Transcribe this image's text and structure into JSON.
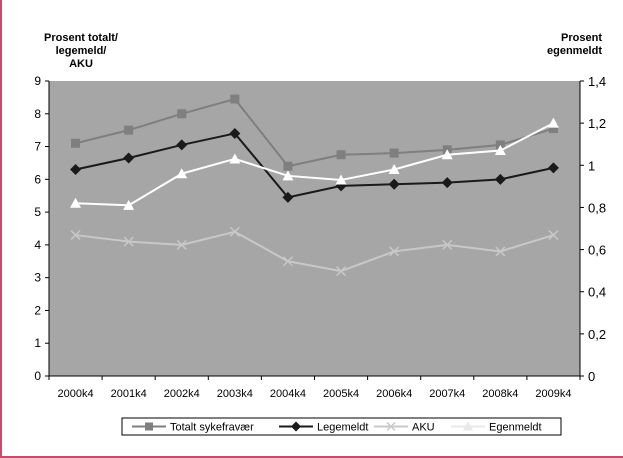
{
  "chart_data": {
    "type": "line",
    "categories": [
      "2000k4",
      "2001k4",
      "2002k4",
      "2003k4",
      "2004k4",
      "2005k4",
      "2006k4",
      "2007k4",
      "2008k4",
      "2009k4"
    ],
    "y_left": {
      "title": [
        "Prosent totalt/",
        "legemeld/",
        "AKU"
      ],
      "ylim": [
        0,
        9
      ],
      "ticks": [
        "0",
        "1",
        "2",
        "3",
        "4",
        "5",
        "6",
        "7",
        "8",
        "9"
      ]
    },
    "y_right": {
      "title": [
        "Prosent",
        "egenmeldt"
      ],
      "ylim": [
        0,
        1.4
      ],
      "ticks": [
        "0",
        "0,2",
        "0,4",
        "0,6",
        "0,8",
        "1",
        "1,2",
        "1,4"
      ]
    },
    "series": [
      {
        "name": "Totalt sykefravær",
        "axis": "left",
        "color": "#7f7f7f",
        "marker": "square",
        "values": [
          7.1,
          7.5,
          8.0,
          8.45,
          6.4,
          6.75,
          6.8,
          6.9,
          7.05,
          7.55
        ]
      },
      {
        "name": "Legemeldt",
        "axis": "left",
        "color": "#1a1a1a",
        "marker": "diamond",
        "values": [
          6.3,
          6.65,
          7.05,
          7.4,
          5.45,
          5.8,
          5.85,
          5.9,
          6.0,
          6.35
        ]
      },
      {
        "name": "AKU",
        "axis": "left",
        "color": "#c8c8c8",
        "marker": "x",
        "values": [
          4.3,
          4.1,
          4.0,
          4.4,
          3.5,
          3.2,
          3.8,
          4.0,
          3.8,
          4.3
        ]
      },
      {
        "name": "Egenmeldt",
        "axis": "right",
        "color": "#ffffff",
        "marker": "triangle",
        "values": [
          0.82,
          0.81,
          0.96,
          1.03,
          0.95,
          0.93,
          0.98,
          1.05,
          1.07,
          1.2
        ]
      }
    ],
    "grid": false,
    "legend_position": "bottom",
    "plot_background": "#a6a6a6"
  }
}
